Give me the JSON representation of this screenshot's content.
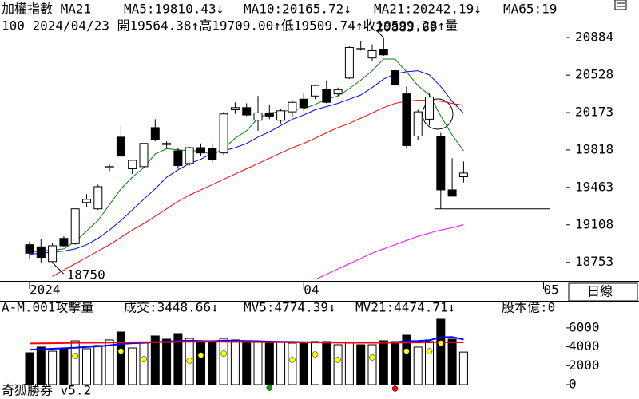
{
  "chart_data": [
    {
      "type": "candlestick",
      "title": "加權指數 MA21",
      "subtitle": "100 2024/04/23 開19564.38↑高19709.00↑低19509.74↑收19599.28↑量",
      "categories": [
        "2024",
        null,
        null,
        null,
        null,
        null,
        null,
        null,
        null,
        null,
        null,
        null,
        null,
        null,
        null,
        null,
        null,
        null,
        null,
        null,
        null,
        null,
        null,
        null,
        "04",
        null,
        null,
        null,
        null,
        null,
        null,
        null,
        null,
        null,
        null,
        null,
        null,
        null,
        null,
        null,
        null,
        null,
        null,
        null,
        null,
        "05"
      ],
      "open": [
        18920,
        18900,
        18760,
        18980,
        18930,
        19320,
        19260,
        19650,
        19940,
        19640,
        19660,
        20030,
        19880,
        19810,
        19690,
        19840,
        19830,
        19790,
        20200,
        20220,
        20100,
        20170,
        20100,
        20180,
        20300,
        20330,
        20390,
        20350,
        20500,
        20780,
        20690,
        20770,
        20570,
        20350,
        19950,
        20110,
        19950,
        19440,
        19564.38,
        null,
        null,
        null,
        null,
        null,
        null,
        null
      ],
      "high": [
        18950,
        18970,
        18940,
        19000,
        19260,
        19400,
        19490,
        19680,
        20050,
        19720,
        19880,
        20110,
        19900,
        19840,
        19850,
        19880,
        19880,
        20180,
        20270,
        20260,
        20330,
        20250,
        20210,
        20290,
        20360,
        20440,
        20470,
        20410,
        20800,
        20850,
        20820,
        20883.69,
        20610,
        20420,
        20200,
        20360,
        19980,
        19740,
        19709.0,
        null,
        null,
        null,
        null,
        null,
        null,
        null
      ],
      "low": [
        18780,
        18752.53,
        18750,
        18900,
        18920,
        19280,
        19250,
        19620,
        19760,
        19590,
        19650,
        19900,
        19840,
        19640,
        19670,
        19760,
        19700,
        19770,
        20160,
        20140,
        20000,
        20110,
        20070,
        20130,
        20190,
        20300,
        20260,
        20330,
        20490,
        20760,
        20660,
        20710,
        20420,
        19830,
        19910,
        20050,
        19260,
        19380,
        19509.74,
        null,
        null,
        null,
        null,
        null,
        null,
        null
      ],
      "close": [
        18840,
        18800,
        18910,
        18910,
        19260,
        19350,
        19470,
        19660,
        19760,
        19720,
        19880,
        19920,
        19870,
        19670,
        19840,
        19790,
        19730,
        20160,
        20220,
        20150,
        20170,
        20140,
        20190,
        20270,
        20220,
        20430,
        20270,
        20390,
        20790,
        20770,
        20760,
        20720,
        20440,
        19860,
        20180,
        20320,
        19440,
        19380,
        19599.28,
        null,
        null,
        null,
        null,
        null,
        null,
        null
      ],
      "up_color": "#ffffff",
      "down_color": "#000000",
      "series": [
        {
          "name": "MA5:19810.43↓",
          "color": "#008000",
          "values": [
            18850,
            18860,
            18870,
            18880,
            18950,
            19050,
            19150,
            19300,
            19450,
            19560,
            19650,
            19780,
            19830,
            19820,
            19810,
            19810,
            19770,
            19830,
            19930,
            20000,
            20120,
            20170,
            20180,
            20200,
            20210,
            20250,
            20300,
            20330,
            20400,
            20480,
            20570,
            20680,
            20680,
            20560,
            20430,
            20340,
            20140,
            19960,
            19810.43,
            null,
            null,
            null,
            null,
            null,
            null,
            null
          ]
        },
        {
          "name": "MA10:20165.72↓",
          "color": "#0000ff",
          "values": [
            18830,
            18840,
            18850,
            18860,
            18880,
            18920,
            18980,
            19060,
            19150,
            19250,
            19350,
            19450,
            19560,
            19630,
            19690,
            19730,
            19790,
            19810,
            19840,
            19880,
            19940,
            19990,
            20050,
            20110,
            20150,
            20200,
            20230,
            20260,
            20300,
            20340,
            20410,
            20490,
            20540,
            20560,
            20570,
            20530,
            20420,
            20280,
            20165.72,
            null,
            null,
            null,
            null,
            null,
            null,
            null
          ]
        },
        {
          "name": "MA21:20242.19↓",
          "color": "#ff0000",
          "values": [
            null,
            null,
            18620,
            18680,
            18740,
            18800,
            18860,
            18920,
            18990,
            19060,
            19120,
            19190,
            19260,
            19330,
            19390,
            19440,
            19490,
            19540,
            19590,
            19640,
            19690,
            19740,
            19790,
            19840,
            19880,
            19930,
            19980,
            20030,
            20070,
            20120,
            20170,
            20220,
            20260,
            20280,
            20290,
            20290,
            20280,
            20260,
            20242.19,
            null,
            null,
            null,
            null,
            null,
            null,
            null
          ]
        },
        {
          "name": "MA65:19",
          "color": "#ff00ff",
          "values": [
            null,
            null,
            null,
            null,
            null,
            null,
            null,
            null,
            null,
            null,
            null,
            null,
            null,
            null,
            null,
            null,
            null,
            null,
            null,
            null,
            null,
            null,
            null,
            null,
            null,
            18590,
            18640,
            18690,
            18740,
            18790,
            18840,
            18880,
            18920,
            18960,
            19000,
            19030,
            19060,
            19080,
            19110,
            null,
            null,
            null,
            null,
            null,
            null,
            null
          ]
        }
      ],
      "ylim": [
        18577,
        21240
      ],
      "yticks": [
        18753,
        19108,
        19463,
        19818,
        20173,
        20528,
        20884
      ]
    },
    {
      "type": "volume",
      "title": "A-M.001攻擊量",
      "extra_label": "股本億:0",
      "extra_color": "#ff00ff",
      "series": [
        {
          "name": "成交:3448.66↓",
          "color": "#008000",
          "values": [
            3375,
            3970,
            3540,
            3800,
            4640,
            3800,
            4140,
            4730,
            5570,
            3880,
            4390,
            5150,
            4810,
            5400,
            4890,
            4560,
            4560,
            4890,
            4730,
            4560,
            4560,
            4560,
            4560,
            4390,
            4390,
            4560,
            4560,
            4220,
            4390,
            4220,
            4220,
            4640,
            4560,
            5230,
            3970,
            4560,
            6920,
            4810,
            3448.66,
            null,
            null,
            null,
            null,
            null,
            null,
            null
          ]
        },
        {
          "name": "MV5:4774.39↓",
          "color": "#0000ff",
          "values": [
            3700,
            3750,
            3800,
            3850,
            3900,
            3980,
            4050,
            4150,
            4300,
            4380,
            4420,
            4500,
            4560,
            4620,
            4650,
            4620,
            4600,
            4660,
            4640,
            4620,
            4600,
            4560,
            4540,
            4520,
            4500,
            4480,
            4480,
            4470,
            4460,
            4450,
            4440,
            4460,
            4500,
            4600,
            4620,
            4700,
            5000,
            5050,
            4774.39,
            null,
            null,
            null,
            null,
            null,
            null,
            null
          ]
        },
        {
          "name": "MV21:4474.71↓",
          "color": "#ff0000",
          "values": [
            4350,
            4360,
            4380,
            4400,
            4420,
            4430,
            4440,
            4450,
            4460,
            4480,
            4490,
            4500,
            4510,
            4520,
            4530,
            4530,
            4530,
            4530,
            4520,
            4520,
            4510,
            4500,
            4490,
            4480,
            4470,
            4460,
            4450,
            4440,
            4440,
            4430,
            4430,
            4430,
            4440,
            4450,
            4460,
            4470,
            4480,
            4480,
            4474.71,
            null,
            null,
            null,
            null,
            null,
            null,
            null
          ]
        }
      ],
      "dots": {
        "values": [
          null,
          null,
          null,
          null,
          3040,
          null,
          null,
          null,
          3540,
          null,
          2700,
          null,
          null,
          null,
          2530,
          3120,
          null,
          3290,
          null,
          null,
          null,
          -340,
          null,
          2620,
          null,
          3200,
          null,
          2620,
          null,
          null,
          2870,
          null,
          -420,
          3540,
          null,
          3540,
          4390,
          null,
          null,
          null,
          null,
          null,
          null,
          null,
          null,
          null
        ],
        "colors": [
          null,
          null,
          null,
          null,
          "#ffff00",
          null,
          null,
          null,
          "#ffff00",
          null,
          "#ffff00",
          null,
          null,
          null,
          "#ffff00",
          "#ffff00",
          null,
          "#ffff00",
          null,
          null,
          null,
          "#00a000",
          null,
          "#ffff00",
          null,
          "#ffff00",
          null,
          "#ffff00",
          null,
          null,
          "#ffff00",
          null,
          "#ff0000",
          "#ffff00",
          null,
          "#ffff00",
          "#ffff00",
          null,
          null,
          null,
          null,
          null,
          null,
          null,
          null,
          null
        ]
      },
      "ylim": [
        -1519,
        8776
      ],
      "yticks": [
        0,
        2000,
        4000,
        6000
      ]
    }
  ],
  "period": "日線",
  "footer": "奇狐勝券 v5.2"
}
